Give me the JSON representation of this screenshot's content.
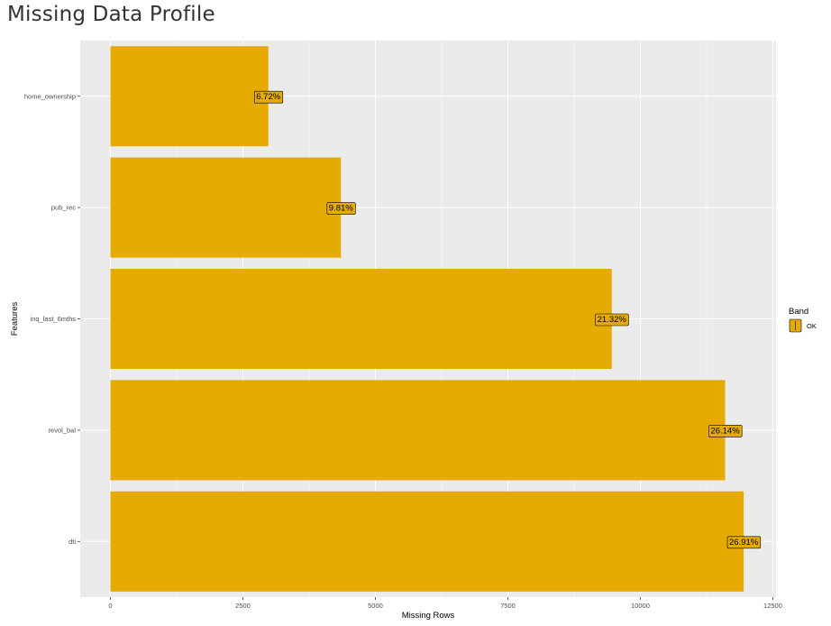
{
  "title": "Missing Data Profile",
  "colors": {
    "panel": "#EBEBEB",
    "grid": "#FFFFFF",
    "bar": "#E5AB00",
    "border": "#000000"
  },
  "chart_data": {
    "type": "bar",
    "orientation": "horizontal",
    "categories": [
      "home_ownership",
      "pub_rec",
      "inq_last_6mths",
      "revol_bal",
      "dti"
    ],
    "values": [
      2980,
      4350,
      9460,
      11600,
      11950
    ],
    "labels": [
      "6.72%",
      "9.81%",
      "21.32%",
      "26.14%",
      "26.91%"
    ],
    "xlabel": "Missing Rows",
    "ylabel": "Features",
    "xlim": [
      -570,
      12560
    ],
    "xticks": [
      0,
      2500,
      5000,
      7500,
      10000,
      12500
    ],
    "grid": true,
    "legend": {
      "title": "Band",
      "entries": [
        "OK"
      ],
      "position": "right"
    }
  }
}
